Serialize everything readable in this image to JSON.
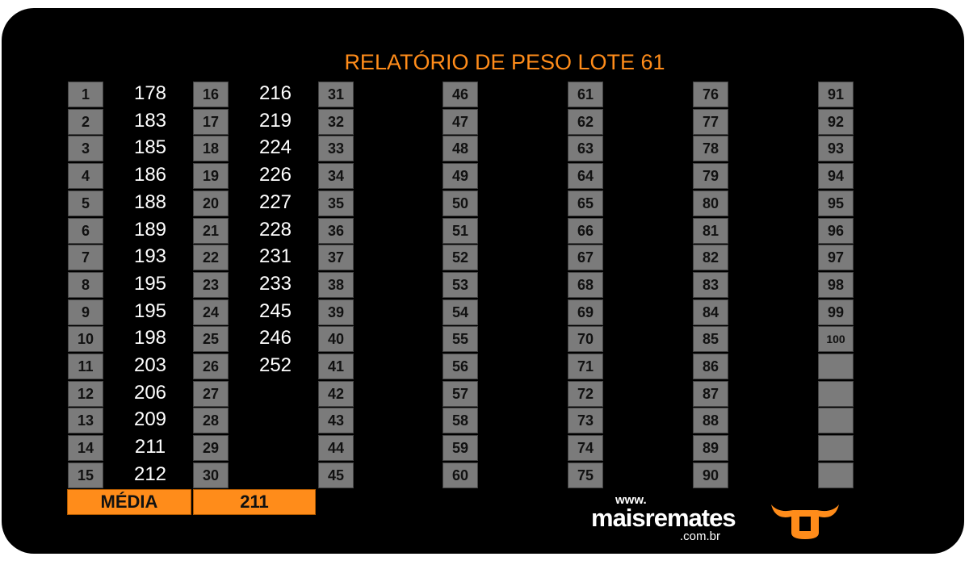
{
  "header": {
    "title": "RELATÓRIO DE PESO LOTE 61"
  },
  "groups": [
    {
      "numbers": [
        1,
        2,
        3,
        4,
        5,
        6,
        7,
        8,
        9,
        10,
        11,
        12,
        13,
        14,
        15
      ],
      "weights": [
        178,
        183,
        185,
        186,
        188,
        189,
        193,
        195,
        195,
        198,
        203,
        206,
        209,
        211,
        212
      ]
    },
    {
      "numbers": [
        16,
        17,
        18,
        19,
        20,
        21,
        22,
        23,
        24,
        25,
        26,
        27,
        28,
        29,
        30
      ],
      "weights": [
        216,
        219,
        224,
        226,
        227,
        228,
        231,
        233,
        245,
        246,
        252
      ]
    },
    {
      "numbers": [
        31,
        32,
        33,
        34,
        35,
        36,
        37,
        38,
        39,
        40,
        41,
        42,
        43,
        44,
        45
      ]
    },
    {
      "numbers": [
        46,
        47,
        48,
        49,
        50,
        51,
        52,
        53,
        54,
        55,
        56,
        57,
        58,
        59,
        60
      ]
    },
    {
      "numbers": [
        61,
        62,
        63,
        64,
        65,
        66,
        67,
        68,
        69,
        70,
        71,
        72,
        73,
        74,
        75
      ]
    },
    {
      "numbers": [
        76,
        77,
        78,
        79,
        80,
        81,
        82,
        83,
        84,
        85,
        86,
        87,
        88,
        89,
        90
      ]
    },
    {
      "numbers": [
        91,
        92,
        93,
        94,
        95,
        96,
        97,
        98,
        99,
        100
      ]
    }
  ],
  "footer": {
    "label": "MÉDIA",
    "average": 211
  },
  "logo": {
    "prefix": "www.",
    "name": "maisremates",
    "suffix": ".com.br"
  }
}
